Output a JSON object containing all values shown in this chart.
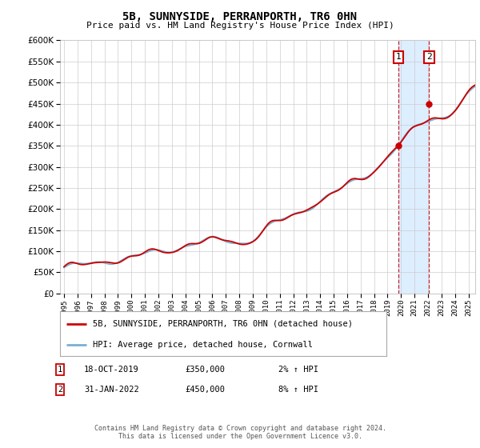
{
  "title": "5B, SUNNYSIDE, PERRANPORTH, TR6 0HN",
  "subtitle": "Price paid vs. HM Land Registry's House Price Index (HPI)",
  "ylim": [
    0,
    600000
  ],
  "ytick_values": [
    0,
    50000,
    100000,
    150000,
    200000,
    250000,
    300000,
    350000,
    400000,
    450000,
    500000,
    550000,
    600000
  ],
  "xlim_start": 1994.7,
  "xlim_end": 2025.5,
  "sale1_x": 2019.79,
  "sale1_y": 350000,
  "sale1_label": "1",
  "sale2_x": 2022.08,
  "sale2_y": 450000,
  "sale2_label": "2",
  "shade_x1": 2019.79,
  "shade_x2": 2022.08,
  "legend_property": "5B, SUNNYSIDE, PERRANPORTH, TR6 0HN (detached house)",
  "legend_hpi": "HPI: Average price, detached house, Cornwall",
  "annotation1_date": "18-OCT-2019",
  "annotation1_price": "£350,000",
  "annotation1_hpi": "2% ↑ HPI",
  "annotation2_date": "31-JAN-2022",
  "annotation2_price": "£450,000",
  "annotation2_hpi": "8% ↑ HPI",
  "footer": "Contains HM Land Registry data © Crown copyright and database right 2024.\nThis data is licensed under the Open Government Licence v3.0.",
  "property_line_color": "#cc0000",
  "hpi_line_color": "#7ab0d4",
  "shade_color": "#ddeeff",
  "grid_color": "#cccccc",
  "background_color": "#ffffff",
  "sale_marker_color": "#cc0000",
  "box_color": "#cc0000"
}
